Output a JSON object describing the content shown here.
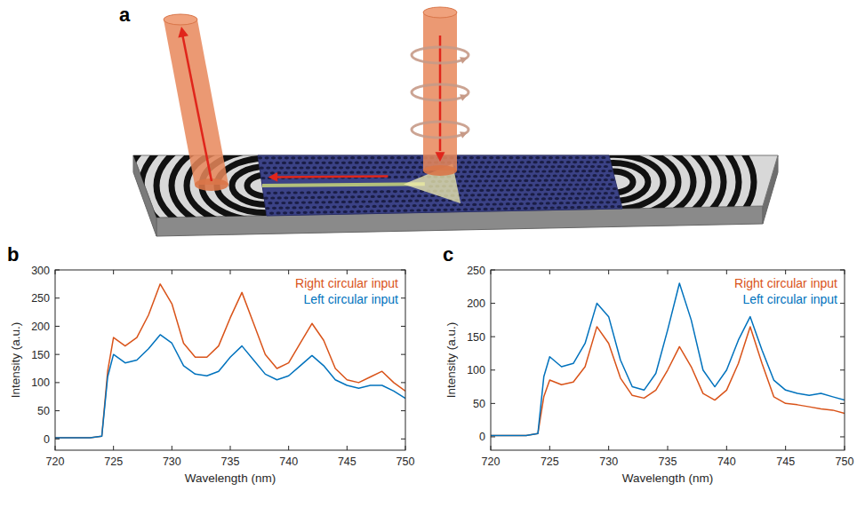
{
  "diagram": {
    "label": "a"
  },
  "chart_data": [
    {
      "label": "b",
      "type": "line",
      "xlabel": "Wavelength (nm)",
      "ylabel": "Intensity (a.u.)",
      "x": [
        720,
        721,
        722,
        723,
        724,
        724.5,
        725,
        726,
        727,
        728,
        729,
        730,
        731,
        732,
        733,
        734,
        735,
        736,
        737,
        738,
        739,
        740,
        741,
        742,
        743,
        744,
        745,
        746,
        747,
        748,
        749,
        750
      ],
      "xlim": [
        720,
        750
      ],
      "ylim": [
        -20,
        300
      ],
      "xticks": [
        720,
        725,
        730,
        735,
        740,
        745,
        750
      ],
      "yticks": [
        0,
        50,
        100,
        150,
        200,
        250,
        300
      ],
      "legend": "top-right",
      "series": [
        {
          "name": "Right circular input",
          "color": "#D95319",
          "values": [
            2,
            2,
            2,
            2,
            5,
            120,
            180,
            165,
            180,
            220,
            275,
            240,
            170,
            145,
            145,
            165,
            215,
            260,
            205,
            150,
            125,
            135,
            170,
            205,
            175,
            125,
            105,
            100,
            110,
            120,
            100,
            85
          ]
        },
        {
          "name": "Left circular input",
          "color": "#0072BD",
          "values": [
            2,
            2,
            2,
            2,
            5,
            110,
            150,
            135,
            140,
            160,
            185,
            170,
            130,
            115,
            112,
            120,
            145,
            165,
            140,
            115,
            105,
            112,
            130,
            148,
            130,
            105,
            95,
            90,
            95,
            95,
            85,
            72
          ]
        }
      ]
    },
    {
      "label": "c",
      "type": "line",
      "xlabel": "Wavelength (nm)",
      "ylabel": "Intensity (a.u.)",
      "x": [
        720,
        721,
        722,
        723,
        724,
        724.5,
        725,
        726,
        727,
        728,
        729,
        730,
        731,
        732,
        733,
        734,
        735,
        736,
        737,
        738,
        739,
        740,
        741,
        742,
        743,
        744,
        745,
        746,
        747,
        748,
        749,
        750
      ],
      "xlim": [
        720,
        750
      ],
      "ylim": [
        -20,
        250
      ],
      "xticks": [
        720,
        725,
        730,
        735,
        740,
        745,
        750
      ],
      "yticks": [
        0,
        50,
        100,
        150,
        200,
        250
      ],
      "legend": "top-right",
      "series": [
        {
          "name": "Right circular input",
          "color": "#D95319",
          "values": [
            2,
            2,
            2,
            2,
            5,
            60,
            85,
            78,
            82,
            105,
            165,
            140,
            88,
            62,
            58,
            70,
            100,
            135,
            105,
            65,
            55,
            70,
            110,
            165,
            110,
            60,
            50,
            48,
            45,
            42,
            40,
            35
          ]
        },
        {
          "name": "Left circular input",
          "color": "#0072BD",
          "values": [
            2,
            2,
            2,
            2,
            5,
            90,
            120,
            105,
            110,
            140,
            200,
            180,
            115,
            75,
            70,
            95,
            160,
            230,
            175,
            100,
            75,
            100,
            145,
            180,
            130,
            85,
            70,
            65,
            62,
            65,
            60,
            55
          ]
        }
      ]
    }
  ]
}
